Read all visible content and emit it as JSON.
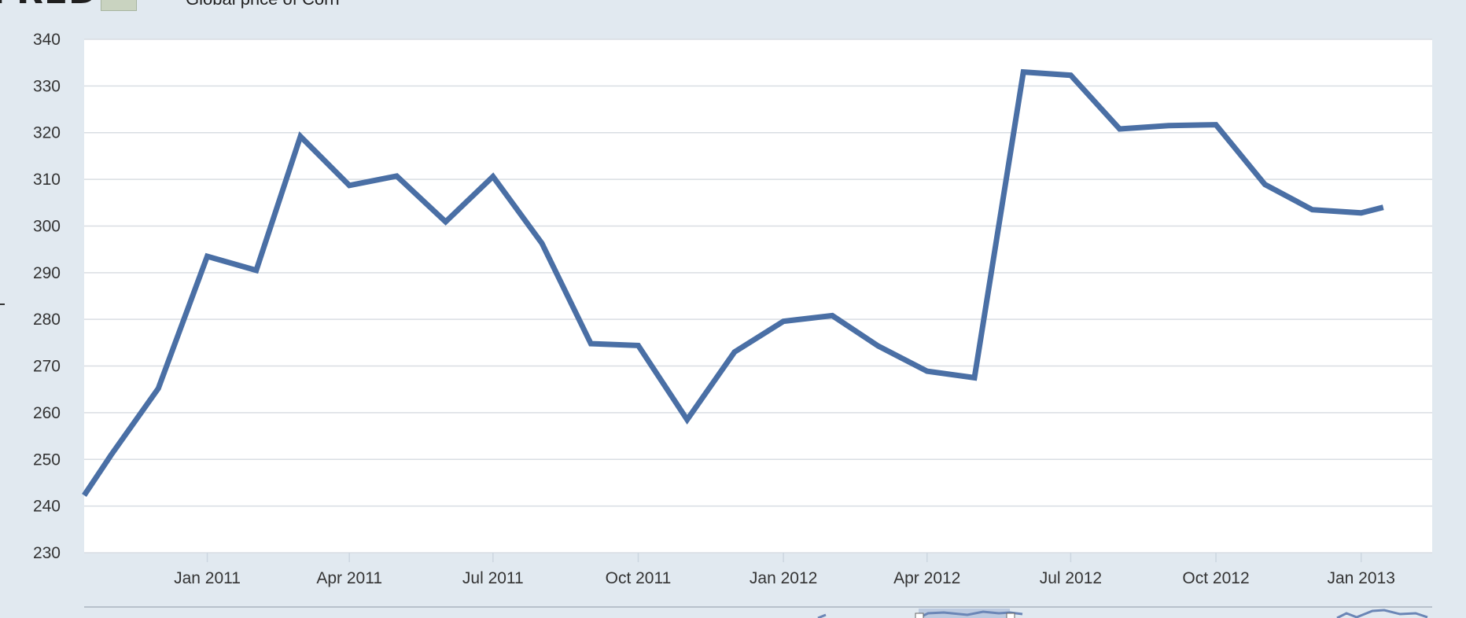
{
  "header": {
    "logo_text": "FRED",
    "chart_title": "Global price of Corn"
  },
  "colors": {
    "background": "#e1e9f0",
    "plot_background": "#ffffff",
    "line": "#4a6fa5",
    "grid": "#d9dee3"
  },
  "chart_data": {
    "type": "line",
    "title": "Global price of Corn",
    "xlabel": "",
    "ylabel": "",
    "ylim": [
      230,
      340
    ],
    "yticks": [
      230,
      240,
      250,
      260,
      270,
      280,
      290,
      300,
      310,
      320,
      330,
      340
    ],
    "xlim": [
      "2010-10-15",
      "2013-02-15"
    ],
    "xticks": [
      {
        "date": "2011-01-01",
        "label": "Jan 2011"
      },
      {
        "date": "2011-04-01",
        "label": "Apr 2011"
      },
      {
        "date": "2011-07-01",
        "label": "Jul 2011"
      },
      {
        "date": "2011-10-01",
        "label": "Oct 2011"
      },
      {
        "date": "2012-01-01",
        "label": "Jan 2012"
      },
      {
        "date": "2012-04-01",
        "label": "Apr 2012"
      },
      {
        "date": "2012-07-01",
        "label": "Jul 2012"
      },
      {
        "date": "2012-10-01",
        "label": "Oct 2012"
      },
      {
        "date": "2013-01-01",
        "label": "Jan 2013"
      }
    ],
    "grid": true,
    "series": [
      {
        "points": [
          {
            "x": "2010-10-15",
            "y": 242.3
          },
          {
            "x": "2010-11-01",
            "y": 250.9
          },
          {
            "x": "2010-12-01",
            "y": 265.2
          },
          {
            "x": "2011-01-01",
            "y": 293.5
          },
          {
            "x": "2011-02-01",
            "y": 290.5
          },
          {
            "x": "2011-03-01",
            "y": 319.2
          },
          {
            "x": "2011-04-01",
            "y": 308.7
          },
          {
            "x": "2011-05-01",
            "y": 310.7
          },
          {
            "x": "2011-06-01",
            "y": 300.9
          },
          {
            "x": "2011-07-01",
            "y": 310.6
          },
          {
            "x": "2011-08-01",
            "y": 296.3
          },
          {
            "x": "2011-09-01",
            "y": 274.8
          },
          {
            "x": "2011-10-01",
            "y": 274.4
          },
          {
            "x": "2011-11-01",
            "y": 258.5
          },
          {
            "x": "2011-12-01",
            "y": 273.0
          },
          {
            "x": "2012-01-01",
            "y": 279.6
          },
          {
            "x": "2012-02-01",
            "y": 280.8
          },
          {
            "x": "2012-03-01",
            "y": 274.3
          },
          {
            "x": "2012-04-01",
            "y": 268.9
          },
          {
            "x": "2012-05-01",
            "y": 267.5
          },
          {
            "x": "2012-06-01",
            "y": 333.0
          },
          {
            "x": "2012-07-01",
            "y": 332.3
          },
          {
            "x": "2012-08-01",
            "y": 320.8
          },
          {
            "x": "2012-09-01",
            "y": 321.5
          },
          {
            "x": "2012-10-01",
            "y": 321.7
          },
          {
            "x": "2012-11-01",
            "y": 308.9
          },
          {
            "x": "2012-12-01",
            "y": 303.5
          },
          {
            "x": "2013-01-01",
            "y": 302.8
          },
          {
            "x": "2013-01-15",
            "y": 304.0
          }
        ]
      }
    ]
  }
}
